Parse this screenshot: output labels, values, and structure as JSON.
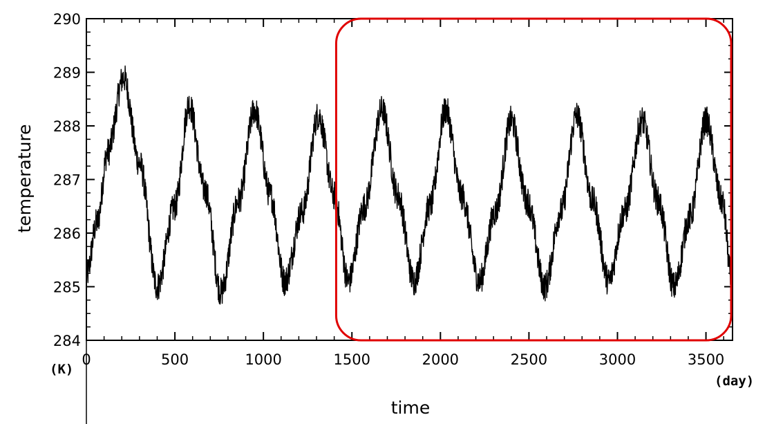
{
  "chart_data": {
    "type": "line",
    "xlabel": "time",
    "ylabel": "temperature",
    "x_unit": "(day)",
    "y_unit": "(K)",
    "xlim": [
      0,
      3650
    ],
    "ylim": [
      284,
      290
    ],
    "x_ticks": [
      "0",
      "500",
      "1000",
      "1500",
      "2000",
      "2500",
      "3000",
      "3500"
    ],
    "y_ticks": [
      "284",
      "285",
      "286",
      "287",
      "288",
      "289",
      "290"
    ],
    "grid": false,
    "legend": "none",
    "series": [
      {
        "color": "#000000",
        "x": [
          0,
          60,
          120,
          210,
          300,
          400,
          500,
          580,
          670,
          760,
          860,
          950,
          1040,
          1120,
          1220,
          1310,
          1400,
          1480,
          1570,
          1670,
          1760,
          1850,
          1940,
          2030,
          2120,
          2220,
          2310,
          2400,
          2490,
          2590,
          2680,
          2770,
          2860,
          2950,
          3040,
          3140,
          3230,
          3320,
          3410,
          3500,
          3590,
          3650
        ],
        "y": [
          285.2,
          286.2,
          287.5,
          288.9,
          287.3,
          285.0,
          286.5,
          288.4,
          286.8,
          284.9,
          286.6,
          288.3,
          286.7,
          285.1,
          286.4,
          288.2,
          286.7,
          285.1,
          286.5,
          288.3,
          286.7,
          285.1,
          286.5,
          288.3,
          286.7,
          285.1,
          286.4,
          288.1,
          286.6,
          285.0,
          286.4,
          288.2,
          286.6,
          285.1,
          286.4,
          288.1,
          286.6,
          285.0,
          286.3,
          288.1,
          286.6,
          285.0
        ]
      }
    ],
    "annotations": [
      {
        "type": "highlight-box",
        "x_range": [
          1450,
          3650
        ],
        "y_range": [
          284,
          290
        ],
        "color": "#e00000"
      }
    ]
  }
}
